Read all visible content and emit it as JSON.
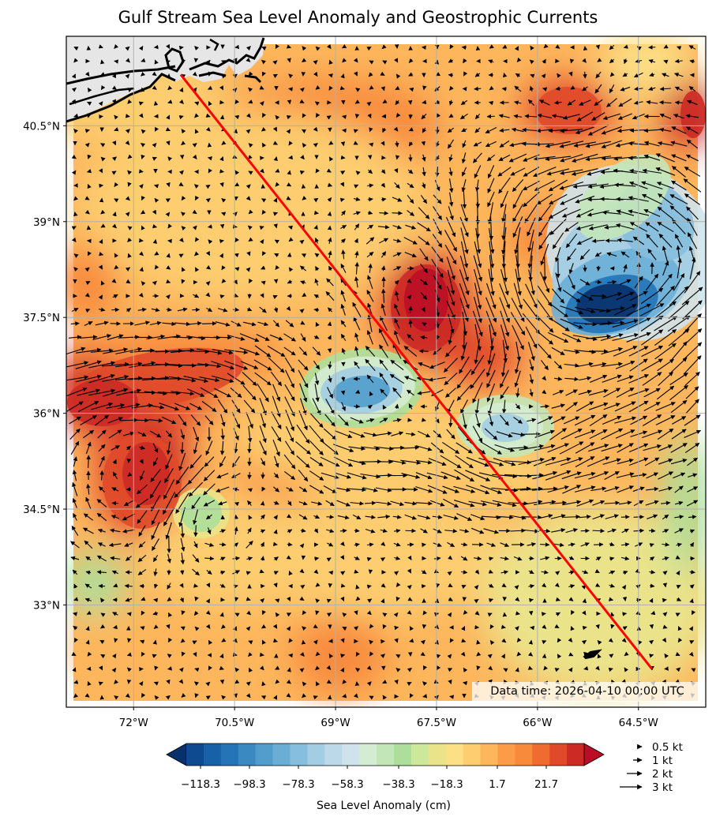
{
  "title": "Gulf Stream Sea Level Anomaly and Geostrophic Currents",
  "data_time": "Data time: 2026-04-10 00:00 UTC",
  "axes": {
    "lat_ticks": [
      "40.5°N",
      "39°N",
      "37.5°N",
      "36°N",
      "34.5°N",
      "33°N"
    ],
    "lon_ticks": [
      "72°W",
      "70.5°W",
      "69°W",
      "67.5°W",
      "66°W",
      "64.5°W"
    ],
    "lat_values": [
      40.5,
      39.0,
      37.5,
      36.0,
      34.5,
      33.0
    ],
    "lon_values": [
      -72.0,
      -70.5,
      -69.0,
      -67.5,
      -66.0,
      -64.5
    ],
    "lon_range": [
      -73.0,
      -63.5
    ],
    "lat_range": [
      31.4,
      41.9
    ],
    "grid": true
  },
  "colorbar": {
    "label": "Sea Level Anomaly (cm)",
    "tick_labels": [
      "−118.3",
      "−98.3",
      "−78.3",
      "−58.3",
      "−38.3",
      "−18.3",
      "1.7",
      "21.7"
    ],
    "colors": [
      "#08306b",
      "#0d4a8f",
      "#1661a8",
      "#2474b7",
      "#3a89c1",
      "#529dcc",
      "#6aaed6",
      "#86bedd",
      "#a2cde3",
      "#bcd9ea",
      "#cfe3ec",
      "#d4ecd2",
      "#c3e6b8",
      "#addf9b",
      "#cde89a",
      "#ebe38a",
      "#fde086",
      "#fdcd6f",
      "#fdb65c",
      "#fc9b48",
      "#f88a3c",
      "#ef6b30",
      "#e04a2a",
      "#cc2a25",
      "#bb0e26"
    ],
    "extend": "both"
  },
  "quiver_key": [
    "0.5 kt",
    "1 kt",
    "2 kt",
    "3 kt"
  ],
  "chart_data": {
    "type": "heatmap",
    "field": "sea level anomaly (cm) with geostrophic current vectors",
    "transect": {
      "start": [
        -71.3,
        41.3
      ],
      "end": [
        -64.3,
        32.0
      ],
      "color": "#ff0000"
    },
    "features": [
      {
        "type": "cyclonic_eddy",
        "center": [
          -64.3,
          37.8
        ],
        "min_value": -118.3
      },
      {
        "type": "cyclonic_eddy",
        "center": [
          -68.3,
          36.4
        ],
        "min_value": -60
      },
      {
        "type": "cyclonic_eddy",
        "center": [
          -66.0,
          35.9
        ],
        "min_value": -50
      },
      {
        "type": "cyclonic_eddy",
        "center": [
          -71.0,
          34.6
        ],
        "min_value": -30
      },
      {
        "type": "anticyclonic_eddy",
        "center": [
          -67.3,
          37.8
        ],
        "max_value": 30
      },
      {
        "type": "anticyclonic_eddy",
        "center": [
          -71.8,
          35.2
        ],
        "max_value": 28
      },
      {
        "type": "anticyclonic_eddy",
        "center": [
          -72.3,
          36.7
        ],
        "max_value": 28
      }
    ]
  }
}
